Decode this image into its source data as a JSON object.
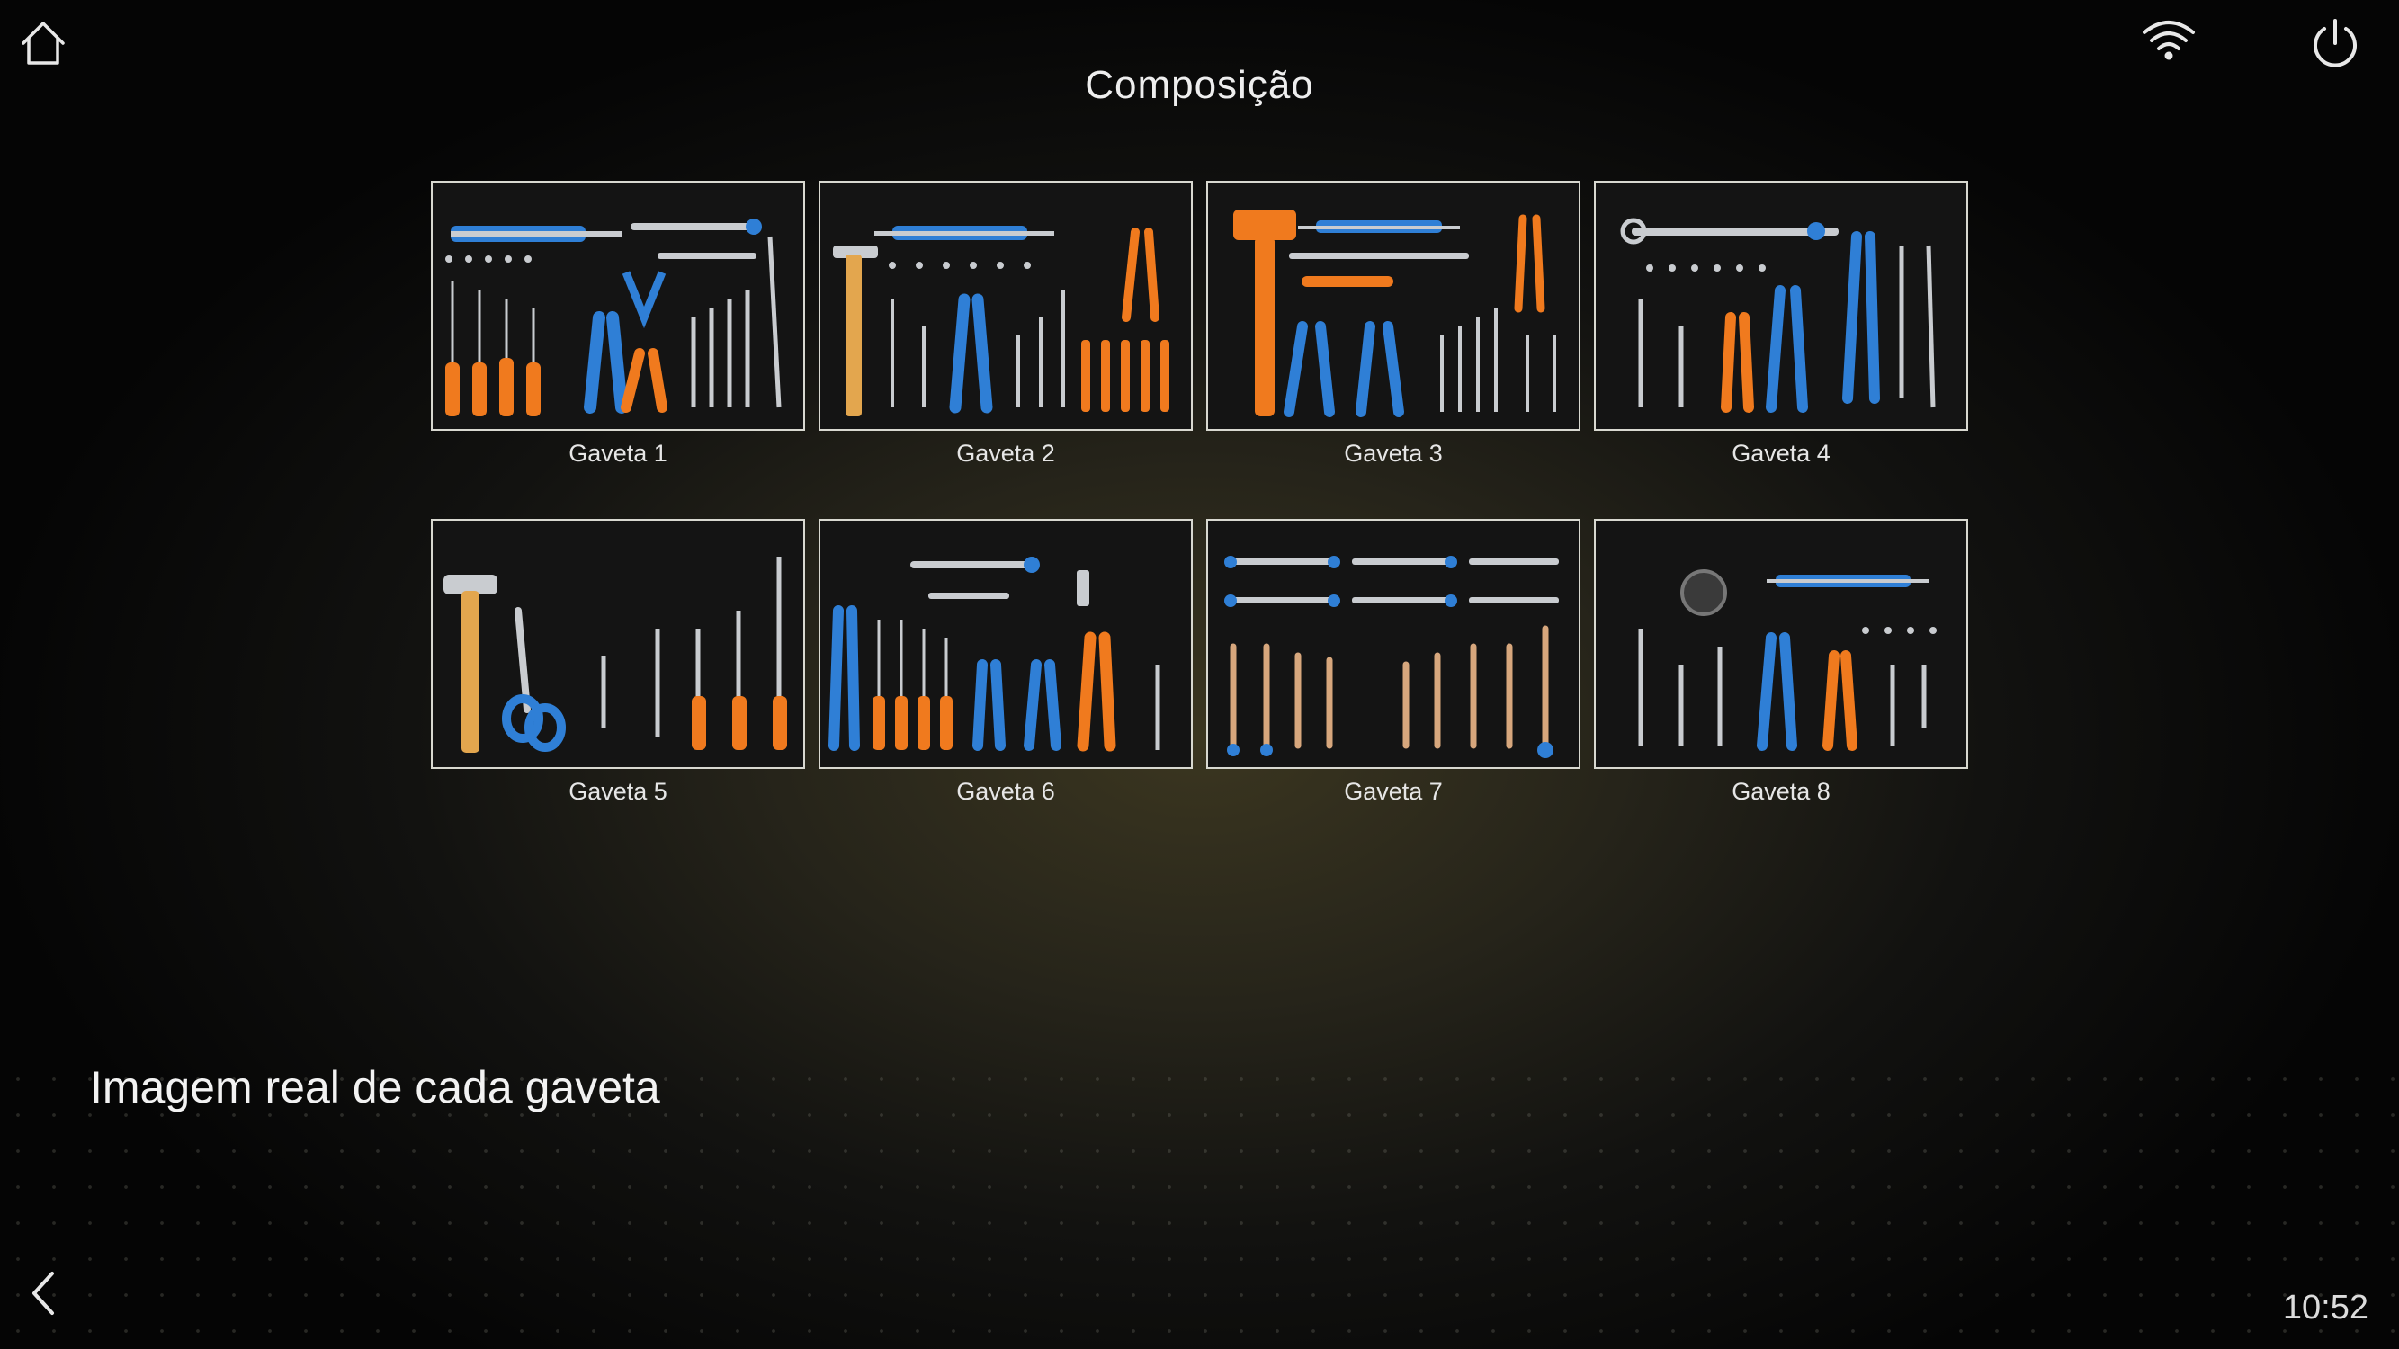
{
  "header": {
    "title": "Composição",
    "icons": [
      "home-icon",
      "wifi-icon",
      "power-icon"
    ]
  },
  "drawers": [
    {
      "label": "Gaveta 1"
    },
    {
      "label": "Gaveta 2"
    },
    {
      "label": "Gaveta 3"
    },
    {
      "label": "Gaveta 4"
    },
    {
      "label": "Gaveta 5"
    },
    {
      "label": "Gaveta 6"
    },
    {
      "label": "Gaveta 7"
    },
    {
      "label": "Gaveta 8"
    }
  ],
  "caption": "Imagem real de cada gaveta",
  "footer": {
    "back_icon": "chevron-left-icon",
    "time": "10:52"
  },
  "colors": {
    "accent_orange": "#f07a1e",
    "accent_blue": "#2f7fd6",
    "metal": "#c9ccd0",
    "thumb_border": "#d8d8d0"
  }
}
